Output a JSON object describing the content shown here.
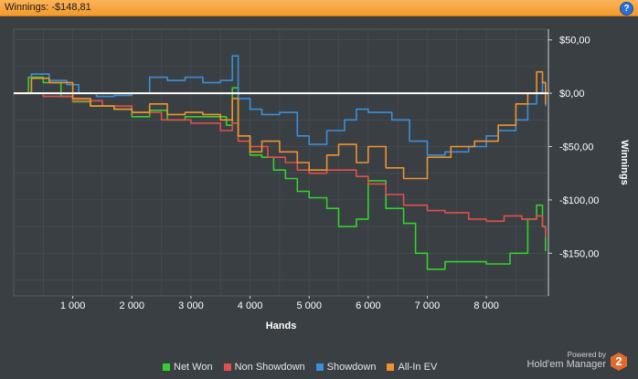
{
  "header": {
    "title": "Winnings: -$148,81"
  },
  "legend": {
    "net_won": "Net Won",
    "non_showdown": "Non Showdown",
    "showdown": "Showdown",
    "allin_ev": "All-In EV"
  },
  "branding": {
    "powered_by": "Powered by",
    "product": "Hold'em Manager",
    "version": "2"
  },
  "colors": {
    "net_won": "#34d12c",
    "non_showdown": "#e0504c",
    "showdown": "#3a8fd8",
    "allin_ev": "#f0922e",
    "zero_line": "#ffffff",
    "grid": "#4a5056"
  },
  "chart_data": {
    "type": "line",
    "title": "",
    "xlabel": "Hands",
    "ylabel": "Winnings",
    "xlim": [
      0,
      9050
    ],
    "ylim": [
      -190,
      60
    ],
    "x_ticks": [
      {
        "v": 1000,
        "label": "1 000"
      },
      {
        "v": 2000,
        "label": "2 000"
      },
      {
        "v": 3000,
        "label": "3 000"
      },
      {
        "v": 4000,
        "label": "4 000"
      },
      {
        "v": 5000,
        "label": "5 000"
      },
      {
        "v": 6000,
        "label": "6 000"
      },
      {
        "v": 7000,
        "label": "7 000"
      },
      {
        "v": 8000,
        "label": "8 000"
      }
    ],
    "y_ticks": [
      {
        "v": 50,
        "label": "$50,00"
      },
      {
        "v": 0,
        "label": "$0,00"
      },
      {
        "v": -50,
        "label": "-$50,00"
      },
      {
        "v": -100,
        "label": "-$100,00"
      },
      {
        "v": -150,
        "label": "-$150,00"
      }
    ],
    "grid": true,
    "legend_position": "bottom",
    "series": [
      {
        "name": "Net Won",
        "key": "net_won",
        "x": [
          0,
          250,
          500,
          800,
          1000,
          1300,
          1700,
          2000,
          2300,
          2600,
          2900,
          3300,
          3600,
          3700,
          3800,
          4000,
          4200,
          4400,
          4600,
          4800,
          5000,
          5300,
          5500,
          5800,
          6000,
          6300,
          6600,
          6800,
          7000,
          7300,
          7600,
          8000,
          8400,
          8700,
          8850,
          8950,
          9000
        ],
        "y": [
          0,
          15,
          10,
          -3,
          -8,
          -12,
          -15,
          -22,
          -16,
          -25,
          -22,
          -22,
          -30,
          5,
          -40,
          -58,
          -60,
          -72,
          -80,
          -92,
          -98,
          -108,
          -125,
          -118,
          -82,
          -108,
          -122,
          -150,
          -165,
          -158,
          -158,
          -160,
          -150,
          -118,
          -105,
          -125,
          -148
        ]
      },
      {
        "name": "Non Showdown",
        "key": "non_showdown",
        "x": [
          0,
          500,
          1000,
          1500,
          2000,
          2500,
          3000,
          3500,
          3700,
          3800,
          4000,
          4300,
          4600,
          4800,
          5000,
          5300,
          5500,
          5800,
          6000,
          6300,
          6600,
          7000,
          7300,
          7700,
          8000,
          8300,
          8600,
          8850,
          8950,
          9000
        ],
        "y": [
          0,
          -3,
          -7,
          -12,
          -18,
          -25,
          -28,
          -35,
          -28,
          -45,
          -50,
          -60,
          -65,
          -72,
          -75,
          -72,
          -72,
          -78,
          -85,
          -95,
          -105,
          -110,
          -112,
          -118,
          -120,
          -115,
          -118,
          -115,
          -125,
          -135
        ]
      },
      {
        "name": "Showdown",
        "key": "showdown",
        "x": [
          0,
          300,
          600,
          900,
          1100,
          1400,
          1700,
          2000,
          2300,
          2600,
          2900,
          3200,
          3500,
          3700,
          3800,
          4000,
          4200,
          4500,
          4800,
          5000,
          5300,
          5600,
          5800,
          6000,
          6400,
          6700,
          7000,
          7300,
          7700,
          8000,
          8200,
          8500,
          8700,
          8850,
          8950,
          9000
        ],
        "y": [
          0,
          18,
          12,
          8,
          0,
          -3,
          -2,
          0,
          15,
          12,
          15,
          10,
          12,
          35,
          -5,
          -15,
          -20,
          -18,
          -40,
          -48,
          -35,
          -25,
          -15,
          -18,
          -25,
          -45,
          -58,
          -55,
          -50,
          -40,
          -35,
          -25,
          -10,
          0,
          10,
          -12
        ]
      },
      {
        "name": "All-In EV",
        "key": "allin_ev",
        "x": [
          0,
          300,
          600,
          1000,
          1300,
          1700,
          2000,
          2300,
          2600,
          2900,
          3200,
          3500,
          3700,
          3800,
          4000,
          4200,
          4500,
          4800,
          5000,
          5300,
          5500,
          5800,
          6000,
          6300,
          6600,
          7000,
          7400,
          7800,
          8200,
          8500,
          8700,
          8850,
          8950,
          9000
        ],
        "y": [
          0,
          14,
          10,
          -5,
          -12,
          -15,
          -18,
          -10,
          -20,
          -18,
          -20,
          -25,
          -5,
          -40,
          -55,
          -45,
          -55,
          -65,
          -72,
          -58,
          -48,
          -65,
          -50,
          -70,
          -80,
          -60,
          -50,
          -45,
          -30,
          -10,
          0,
          20,
          10,
          -10
        ]
      }
    ]
  }
}
